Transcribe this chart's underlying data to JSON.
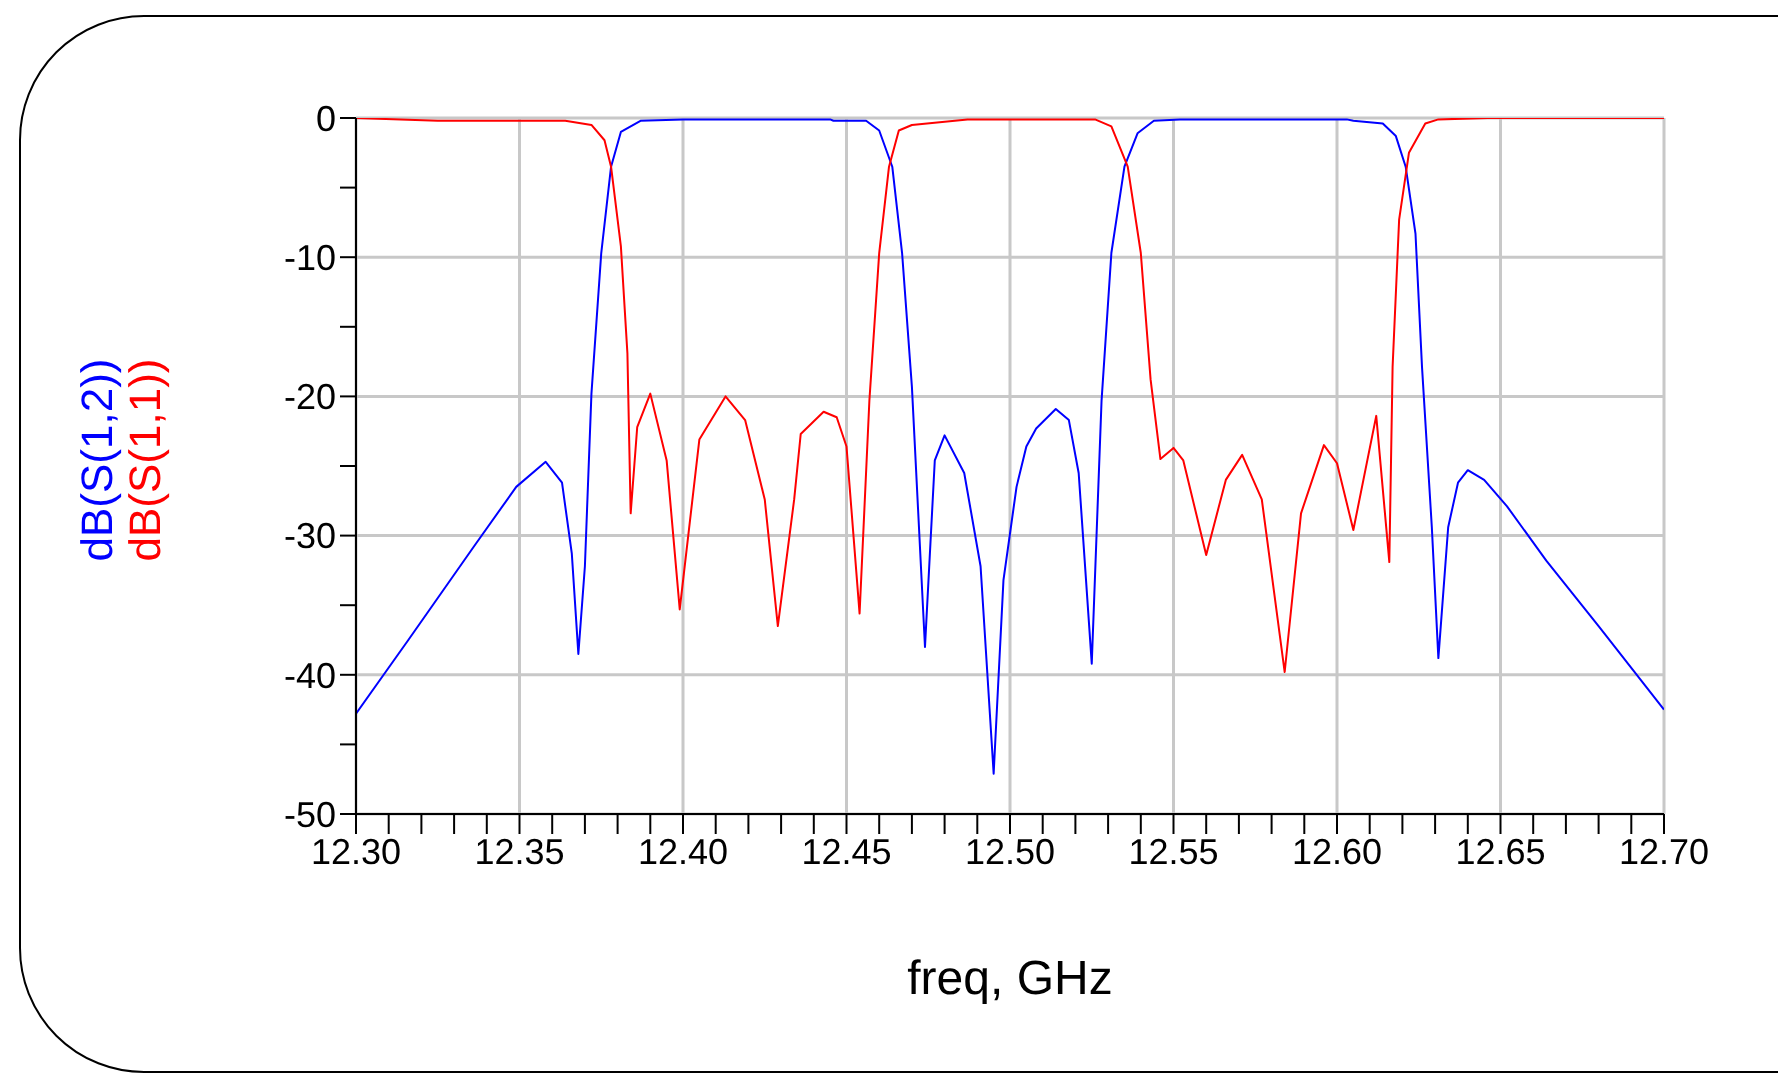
{
  "chart_data": {
    "type": "line",
    "xlabel": "freq, GHz",
    "xlim": [
      12.3,
      12.7
    ],
    "xticks": [
      {
        "value": 12.3,
        "label": "12.30"
      },
      {
        "value": 12.31,
        "label": null
      },
      {
        "value": 12.32,
        "label": null
      },
      {
        "value": 12.33,
        "label": null
      },
      {
        "value": 12.34,
        "label": null
      },
      {
        "value": 12.35,
        "label": "12.35"
      },
      {
        "value": 12.36,
        "label": null
      },
      {
        "value": 12.37,
        "label": null
      },
      {
        "value": 12.38,
        "label": null
      },
      {
        "value": 12.39,
        "label": null
      },
      {
        "value": 12.4,
        "label": "12.40"
      },
      {
        "value": 12.41,
        "label": null
      },
      {
        "value": 12.42,
        "label": null
      },
      {
        "value": 12.43,
        "label": null
      },
      {
        "value": 12.44,
        "label": null
      },
      {
        "value": 12.45,
        "label": "12.45"
      },
      {
        "value": 12.46,
        "label": null
      },
      {
        "value": 12.47,
        "label": null
      },
      {
        "value": 12.48,
        "label": null
      },
      {
        "value": 12.49,
        "label": null
      },
      {
        "value": 12.5,
        "label": "12.50"
      },
      {
        "value": 12.51,
        "label": null
      },
      {
        "value": 12.52,
        "label": null
      },
      {
        "value": 12.53,
        "label": null
      },
      {
        "value": 12.54,
        "label": null
      },
      {
        "value": 12.55,
        "label": "12.55"
      },
      {
        "value": 12.56,
        "label": null
      },
      {
        "value": 12.57,
        "label": null
      },
      {
        "value": 12.58,
        "label": null
      },
      {
        "value": 12.59,
        "label": null
      },
      {
        "value": 12.6,
        "label": "12.60"
      },
      {
        "value": 12.61,
        "label": null
      },
      {
        "value": 12.62,
        "label": null
      },
      {
        "value": 12.63,
        "label": null
      },
      {
        "value": 12.64,
        "label": null
      },
      {
        "value": 12.65,
        "label": "12.65"
      },
      {
        "value": 12.66,
        "label": null
      },
      {
        "value": 12.67,
        "label": null
      },
      {
        "value": 12.68,
        "label": null
      },
      {
        "value": 12.69,
        "label": null
      },
      {
        "value": 12.7,
        "label": "12.70"
      }
    ],
    "ylim": [
      -50,
      0
    ],
    "yticks": [
      -50,
      {
        "value": -45,
        "label": null
      },
      -40,
      {
        "value": -35,
        "label": null
      },
      -30,
      {
        "value": -25,
        "label": null
      },
      -20,
      {
        "value": -15,
        "label": null
      },
      -10,
      {
        "value": -5,
        "label": null
      },
      0
    ],
    "grid": true,
    "legend": "left",
    "marker": "none",
    "line_style": "solid",
    "series": [
      {
        "name": "dB(S(1,2))",
        "color": "#0000ff",
        "x": [
          12.3,
          12.316,
          12.336,
          12.349,
          12.358,
          12.363,
          12.366,
          12.368,
          12.37,
          12.372,
          12.375,
          12.378,
          12.381,
          12.387,
          12.4,
          12.445,
          12.446,
          12.456,
          12.46,
          12.464,
          12.467,
          12.47,
          12.474,
          12.477,
          12.48,
          12.486,
          12.491,
          12.495,
          12.498,
          12.502,
          12.505,
          12.508,
          12.514,
          12.518,
          12.521,
          12.525,
          12.528,
          12.531,
          12.535,
          12.539,
          12.544,
          12.552,
          12.603,
          12.605,
          12.614,
          12.618,
          12.621,
          12.624,
          12.626,
          12.629,
          12.631,
          12.634,
          12.637,
          12.64,
          12.645,
          12.652,
          12.664,
          12.68,
          12.7
        ],
        "values": [
          -42.8,
          -37.5,
          -30.8,
          -26.5,
          -24.7,
          -26.2,
          -31.3,
          -38.5,
          -32.2,
          -19.8,
          -9.7,
          -3.5,
          -1.0,
          -0.2,
          -0.1,
          -0.1,
          -0.2,
          -0.2,
          -0.9,
          -3.5,
          -9.7,
          -19.3,
          -38.0,
          -24.6,
          -22.8,
          -25.5,
          -32.2,
          -47.1,
          -33.2,
          -26.5,
          -23.6,
          -22.3,
          -20.9,
          -21.7,
          -25.5,
          -39.2,
          -20.3,
          -9.7,
          -3.5,
          -1.1,
          -0.2,
          -0.1,
          -0.1,
          -0.2,
          -0.4,
          -1.3,
          -3.5,
          -8.3,
          -17.9,
          -29.4,
          -38.8,
          -29.4,
          -26.2,
          -25.3,
          -26.0,
          -27.9,
          -31.8,
          -36.5,
          -42.5
        ]
      },
      {
        "name": "dB(S(1,1))",
        "color": "#ff0000",
        "x": [
          12.3,
          12.325,
          12.364,
          12.372,
          12.376,
          12.378,
          12.381,
          12.383,
          12.384,
          12.386,
          12.39,
          12.395,
          12.399,
          12.405,
          12.413,
          12.419,
          12.425,
          12.429,
          12.434,
          12.436,
          12.443,
          12.447,
          12.45,
          12.454,
          12.457,
          12.46,
          12.463,
          12.466,
          12.47,
          12.487,
          12.526,
          12.531,
          12.536,
          12.54,
          12.543,
          12.546,
          12.55,
          12.553,
          12.56,
          12.566,
          12.571,
          12.577,
          12.584,
          12.589,
          12.596,
          12.6,
          12.605,
          12.612,
          12.616,
          12.617,
          12.619,
          12.622,
          12.627,
          12.631,
          12.646,
          12.7
        ],
        "values": [
          0,
          -0.2,
          -0.2,
          -0.5,
          -1.6,
          -3.5,
          -9.2,
          -16.9,
          -28.4,
          -22.2,
          -19.8,
          -24.6,
          -35.3,
          -23.1,
          -20.0,
          -21.7,
          -27.4,
          -36.5,
          -27.4,
          -22.7,
          -21.1,
          -21.5,
          -23.6,
          -35.6,
          -20.3,
          -9.7,
          -3.5,
          -0.9,
          -0.5,
          -0.1,
          -0.1,
          -0.6,
          -3.5,
          -9.7,
          -18.8,
          -24.5,
          -23.7,
          -24.6,
          -31.4,
          -26.0,
          -24.2,
          -27.4,
          -39.8,
          -28.4,
          -23.5,
          -24.8,
          -29.6,
          -21.4,
          -31.9,
          -17.9,
          -7.3,
          -2.5,
          -0.4,
          -0.1,
          0,
          0
        ]
      }
    ]
  }
}
